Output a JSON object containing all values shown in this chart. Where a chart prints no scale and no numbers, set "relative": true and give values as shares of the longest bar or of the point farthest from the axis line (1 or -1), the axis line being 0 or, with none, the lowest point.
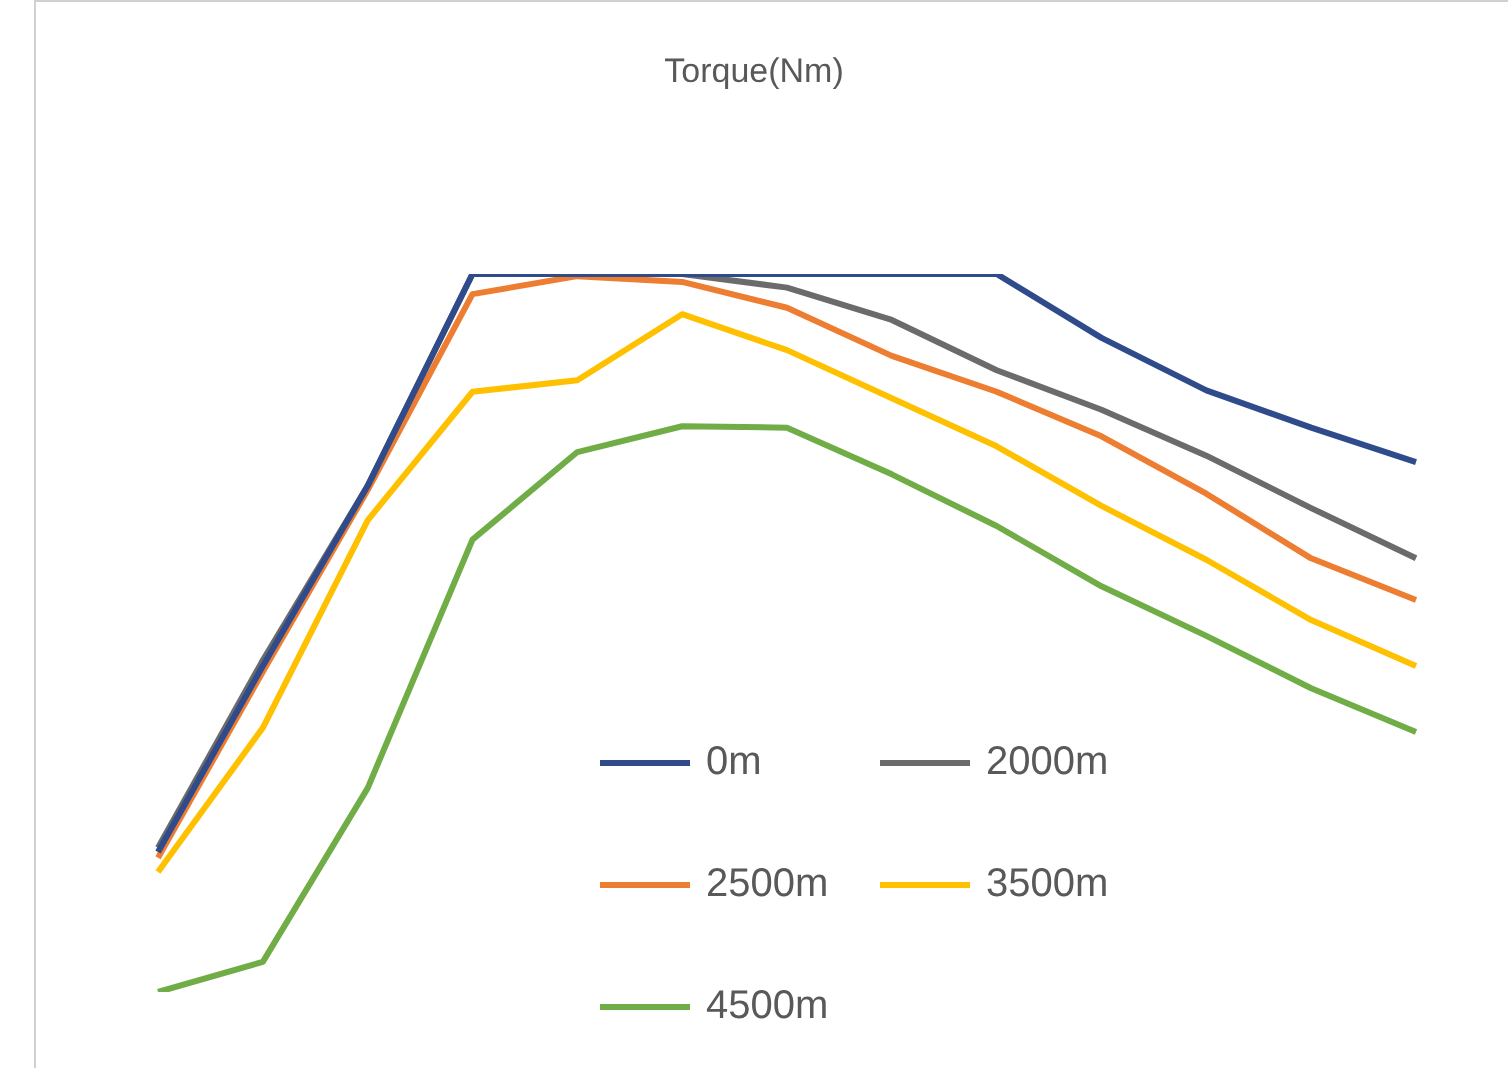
{
  "chart_data": {
    "type": "line",
    "title": "Torque(Nm)",
    "relative": true,
    "legend": "bottom",
    "marker": "none",
    "line_style": "solid",
    "categories": [
      null,
      null,
      null,
      null,
      null,
      null,
      null,
      null,
      null,
      null,
      null,
      null,
      null
    ],
    "series": [
      {
        "name": "0m",
        "color": "#2f4b8c",
        "values": [
          0.195,
          0.454,
          0.705,
          1,
          1,
          1,
          1,
          1,
          1,
          0.911,
          0.838,
          0.786,
          0.738
        ]
      },
      {
        "name": "2000m",
        "color": "#6b6b6b",
        "values": [
          0.201,
          0.462,
          0.705,
          1,
          1,
          1,
          0.981,
          0.936,
          0.866,
          0.811,
          0.747,
          0.674,
          0.604
        ]
      },
      {
        "name": "2500m",
        "color": "#ed7d31",
        "values": [
          0.187,
          0.446,
          0.699,
          0.972,
          0.997,
          0.989,
          0.953,
          0.886,
          0.836,
          0.774,
          0.694,
          0.604,
          0.546
        ]
      },
      {
        "name": "3500m",
        "color": "#ffc000",
        "values": [
          0.167,
          0.368,
          0.657,
          0.836,
          0.852,
          0.944,
          0.894,
          0.827,
          0.76,
          0.677,
          0.602,
          0.518,
          0.454
        ]
      },
      {
        "name": "4500m",
        "color": "#70ad47",
        "values": [
          0,
          0.042,
          0.284,
          0.63,
          0.752,
          0.788,
          0.786,
          0.721,
          0.649,
          0.565,
          0.496,
          0.423,
          0.362
        ]
      }
    ]
  }
}
